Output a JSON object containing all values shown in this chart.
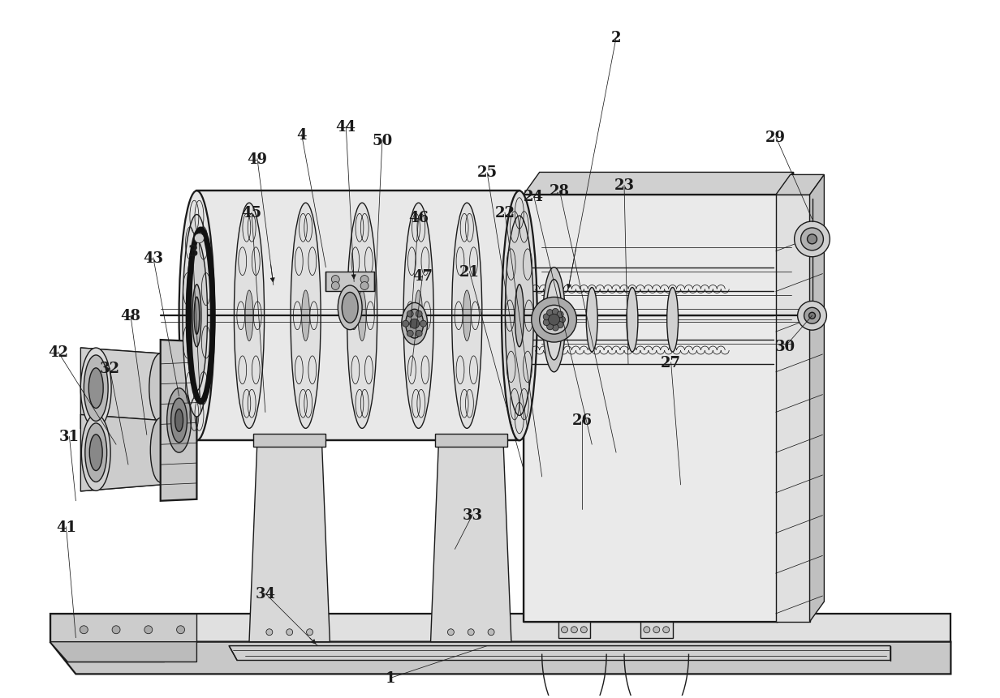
{
  "bg_color": "#ffffff",
  "line_color": "#1a1a1a",
  "figsize": [
    12.32,
    8.62
  ],
  "dpi": 100,
  "lw": 1.0,
  "lw_thick": 1.6,
  "lw_thin": 0.55,
  "label_fs": 13
}
